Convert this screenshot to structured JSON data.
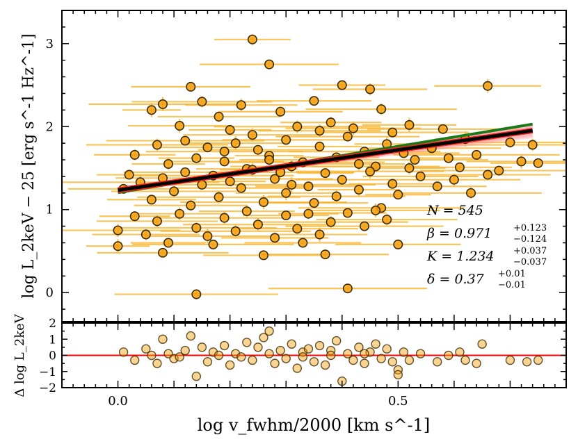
{
  "chart_data": {
    "type": "scatter",
    "xlabel": "log v_fwhm/2000 [km s^-1]",
    "xlim": [
      -0.1,
      0.8
    ],
    "x_ticks": [
      "0.0",
      "0.5"
    ],
    "top_panel": {
      "ylabel": "log L_2keV − 25 [erg s^-1 Hz^-1]",
      "ylim": [
        -0.35,
        3.4
      ],
      "y_ticks": [
        "0",
        "1",
        "2",
        "3"
      ],
      "point_color": "#f5a00f",
      "errorbar_color": "#f7b530",
      "points": [
        [
          0.24,
          3.05
        ],
        [
          0.27,
          2.75
        ],
        [
          0.13,
          2.48
        ],
        [
          0.66,
          2.49
        ],
        [
          0.4,
          2.5
        ],
        [
          0.08,
          2.27
        ],
        [
          0.15,
          2.3
        ],
        [
          0.22,
          2.26
        ],
        [
          0.35,
          2.31
        ],
        [
          0.45,
          2.45
        ],
        [
          0.06,
          2.2
        ],
        [
          0.18,
          2.12
        ],
        [
          0.29,
          2.18
        ],
        [
          0.38,
          2.05
        ],
        [
          0.47,
          2.21
        ],
        [
          0.52,
          2.02
        ],
        [
          0.11,
          2.01
        ],
        [
          0.2,
          1.96
        ],
        [
          0.32,
          2.0
        ],
        [
          0.42,
          1.98
        ],
        [
          0.49,
          1.93
        ],
        [
          0.58,
          1.97
        ],
        [
          0.62,
          1.85
        ],
        [
          0.7,
          1.81
        ],
        [
          0.74,
          1.78
        ],
        [
          0.03,
          1.66
        ],
        [
          0.07,
          1.78
        ],
        [
          0.09,
          1.55
        ],
        [
          0.12,
          1.83
        ],
        [
          0.14,
          1.62
        ],
        [
          0.16,
          1.75
        ],
        [
          0.19,
          1.58
        ],
        [
          0.21,
          1.8
        ],
        [
          0.23,
          1.49
        ],
        [
          0.25,
          1.72
        ],
        [
          0.27,
          1.65
        ],
        [
          0.3,
          1.84
        ],
        [
          0.33,
          1.57
        ],
        [
          0.36,
          1.76
        ],
        [
          0.39,
          1.63
        ],
        [
          0.41,
          1.88
        ],
        [
          0.44,
          1.7
        ],
        [
          0.46,
          1.52
        ],
        [
          0.48,
          1.79
        ],
        [
          0.51,
          1.68
        ],
        [
          0.53,
          1.6
        ],
        [
          0.56,
          1.74
        ],
        [
          0.59,
          1.62
        ],
        [
          0.61,
          1.51
        ],
        [
          0.64,
          1.66
        ],
        [
          0.68,
          1.47
        ],
        [
          0.72,
          1.58
        ],
        [
          0.75,
          1.56
        ],
        [
          0.01,
          1.25
        ],
        [
          0.02,
          1.42
        ],
        [
          0.04,
          1.33
        ],
        [
          0.06,
          1.12
        ],
        [
          0.08,
          1.38
        ],
        [
          0.1,
          1.22
        ],
        [
          0.12,
          1.45
        ],
        [
          0.13,
          1.05
        ],
        [
          0.15,
          1.3
        ],
        [
          0.17,
          1.41
        ],
        [
          0.18,
          1.15
        ],
        [
          0.2,
          1.34
        ],
        [
          0.22,
          1.26
        ],
        [
          0.24,
          1.48
        ],
        [
          0.26,
          1.09
        ],
        [
          0.28,
          1.37
        ],
        [
          0.3,
          1.2
        ],
        [
          0.31,
          1.52
        ],
        [
          0.34,
          1.28
        ],
        [
          0.35,
          1.08
        ],
        [
          0.37,
          1.44
        ],
        [
          0.39,
          1.16
        ],
        [
          0.4,
          1.36
        ],
        [
          0.43,
          1.24
        ],
        [
          0.45,
          1.46
        ],
        [
          0.47,
          1.02
        ],
        [
          0.49,
          1.31
        ],
        [
          0.5,
          1.18
        ],
        [
          0.54,
          1.4
        ],
        [
          0.57,
          1.28
        ],
        [
          0.6,
          1.36
        ],
        [
          0.63,
          1.2
        ],
        [
          0.66,
          1.42
        ],
        [
          0.0,
          0.75
        ],
        [
          0.03,
          0.92
        ],
        [
          0.05,
          0.7
        ],
        [
          0.07,
          0.86
        ],
        [
          0.09,
          0.6
        ],
        [
          0.11,
          0.95
        ],
        [
          0.14,
          0.78
        ],
        [
          0.16,
          0.68
        ],
        [
          0.19,
          0.9
        ],
        [
          0.21,
          0.74
        ],
        [
          0.23,
          0.98
        ],
        [
          0.25,
          0.82
        ],
        [
          0.28,
          0.66
        ],
        [
          0.3,
          0.93
        ],
        [
          0.32,
          0.77
        ],
        [
          0.34,
          0.95
        ],
        [
          0.36,
          0.7
        ],
        [
          0.38,
          0.85
        ],
        [
          0.41,
          0.96
        ],
        [
          0.44,
          0.8
        ],
        [
          0.46,
          0.99
        ],
        [
          0.48,
          0.88
        ],
        [
          0.0,
          0.56
        ],
        [
          0.08,
          0.48
        ],
        [
          0.17,
          0.58
        ],
        [
          0.26,
          0.45
        ],
        [
          0.33,
          0.6
        ],
        [
          0.37,
          0.46
        ],
        [
          0.5,
          0.58
        ],
        [
          0.14,
          -0.02
        ],
        [
          0.41,
          0.05
        ],
        [
          0.27,
          1.6
        ],
        [
          0.29,
          1.45
        ],
        [
          0.19,
          1.7
        ],
        [
          0.43,
          1.55
        ],
        [
          0.52,
          1.5
        ],
        [
          0.31,
          1.3
        ],
        [
          0.36,
          1.95
        ],
        [
          0.24,
          1.9
        ]
      ]
    },
    "regression": {
      "red_line": [
        [
          0.0,
          1.234
        ],
        [
          0.74,
          1.952
        ]
      ],
      "black_line": [
        [
          0.0,
          1.234
        ],
        [
          0.74,
          1.952
        ]
      ],
      "green_line": [
        [
          0.0,
          1.205
        ],
        [
          0.74,
          2.03
        ]
      ],
      "colors": {
        "black": "#000000",
        "red": "#ff2020",
        "green": "#1a7a1a",
        "band": "#ff9999"
      }
    },
    "annotations": {
      "n": "N = 545",
      "beta": "β = 0.971",
      "beta_err": [
        "+0.123",
        "−0.124"
      ],
      "k": "K = 1.234",
      "k_err": [
        "+0.037",
        "−0.037"
      ],
      "delta": "δ = 0.37",
      "delta_err": [
        "+0.01",
        "−0.01"
      ]
    },
    "bottom_panel": {
      "ylabel": "Δ log L_2keV",
      "ylim": [
        -2,
        2
      ],
      "y_ticks": [
        "2",
        "1",
        "0",
        "−1",
        "−2"
      ],
      "zero_line_color": "#ff0000",
      "residuals": [
        [
          0.01,
          0.2
        ],
        [
          0.03,
          -0.3
        ],
        [
          0.05,
          0.4
        ],
        [
          0.07,
          -0.5
        ],
        [
          0.08,
          1.0
        ],
        [
          0.09,
          0.1
        ],
        [
          0.1,
          -0.2
        ],
        [
          0.12,
          0.3
        ],
        [
          0.13,
          1.2
        ],
        [
          0.14,
          -1.3
        ],
        [
          0.15,
          0.5
        ],
        [
          0.16,
          -0.4
        ],
        [
          0.17,
          0.2
        ],
        [
          0.19,
          0.6
        ],
        [
          0.2,
          -0.6
        ],
        [
          0.21,
          0.1
        ],
        [
          0.23,
          0.8
        ],
        [
          0.24,
          -0.3
        ],
        [
          0.25,
          0.5
        ],
        [
          0.26,
          1.1
        ],
        [
          0.27,
          1.5
        ],
        [
          0.28,
          -0.5
        ],
        [
          0.29,
          0.3
        ],
        [
          0.3,
          -0.2
        ],
        [
          0.31,
          0.7
        ],
        [
          0.32,
          -0.8
        ],
        [
          0.33,
          0.2
        ],
        [
          0.34,
          0.4
        ],
        [
          0.35,
          -0.4
        ],
        [
          0.36,
          0.6
        ],
        [
          0.37,
          -0.6
        ],
        [
          0.38,
          0.3
        ],
        [
          0.39,
          0.9
        ],
        [
          0.4,
          -1.6
        ],
        [
          0.41,
          0.1
        ],
        [
          0.42,
          -0.3
        ],
        [
          0.43,
          0.5
        ],
        [
          0.44,
          -0.5
        ],
        [
          0.45,
          0.2
        ],
        [
          0.46,
          0.7
        ],
        [
          0.47,
          -0.2
        ],
        [
          0.48,
          0.4
        ],
        [
          0.49,
          -0.4
        ],
        [
          0.5,
          -0.9
        ],
        [
          0.51,
          0.2
        ],
        [
          0.52,
          -0.3
        ],
        [
          0.54,
          0.1
        ],
        [
          0.57,
          -0.4
        ],
        [
          0.59,
          0.0
        ],
        [
          0.61,
          0.2
        ],
        [
          0.62,
          -0.3
        ],
        [
          0.64,
          -0.5
        ],
        [
          0.65,
          0.7
        ],
        [
          0.7,
          -0.3
        ],
        [
          0.73,
          -0.4
        ],
        [
          0.75,
          -0.3
        ],
        [
          0.06,
          0.0
        ],
        [
          0.11,
          -0.1
        ],
        [
          0.18,
          0.0
        ],
        [
          0.22,
          -0.1
        ],
        [
          0.27,
          0.1
        ],
        [
          0.33,
          -0.1
        ],
        [
          0.38,
          0.0
        ],
        [
          0.44,
          0.1
        ],
        [
          0.5,
          -1.2
        ]
      ]
    }
  }
}
